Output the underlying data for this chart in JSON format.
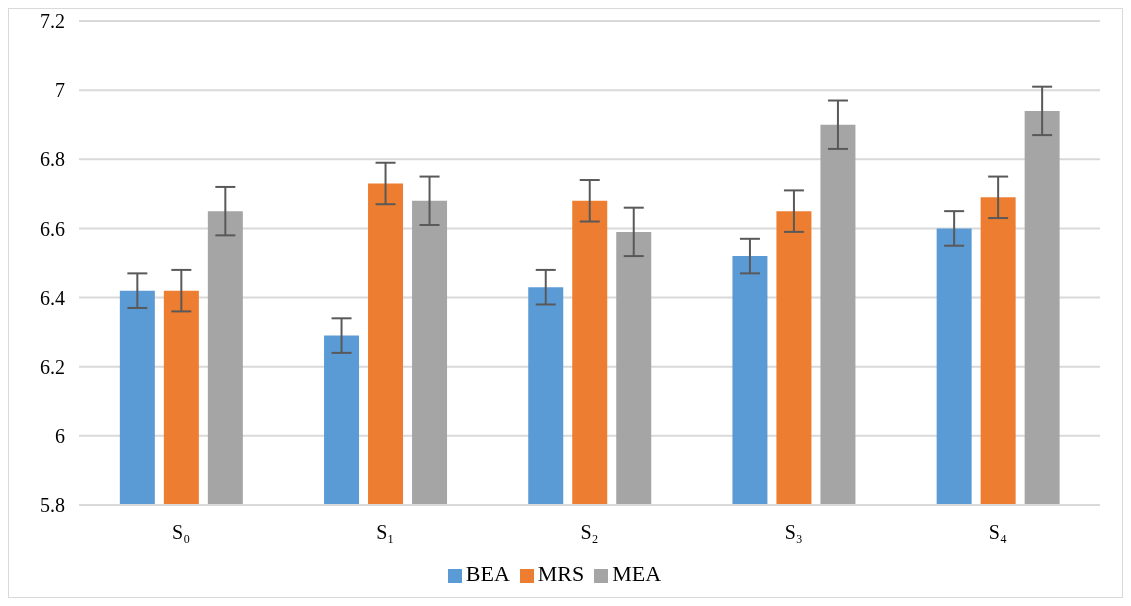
{
  "chart_data": {
    "type": "bar",
    "categories": [
      "S₀",
      "S₁",
      "S₂",
      "S₃",
      "S₄"
    ],
    "series": [
      {
        "name": "BEA",
        "color": "#5b9bd5",
        "values": [
          6.42,
          6.29,
          6.43,
          6.52,
          6.6
        ],
        "errors": [
          0.05,
          0.05,
          0.05,
          0.05,
          0.05
        ]
      },
      {
        "name": "MRS",
        "color": "#ed7d31",
        "values": [
          6.42,
          6.73,
          6.68,
          6.65,
          6.69
        ],
        "errors": [
          0.06,
          0.06,
          0.06,
          0.06,
          0.06
        ]
      },
      {
        "name": "MEA",
        "color": "#a5a5a5",
        "values": [
          6.65,
          6.68,
          6.59,
          6.9,
          6.94
        ],
        "errors": [
          0.07,
          0.07,
          0.07,
          0.07,
          0.07
        ]
      }
    ],
    "ylim": [
      5.8,
      7.2
    ],
    "yticks": [
      5.8,
      6,
      6.2,
      6.4,
      6.6,
      6.8,
      7,
      7.2
    ],
    "grid": "y",
    "legend": "bottom"
  }
}
